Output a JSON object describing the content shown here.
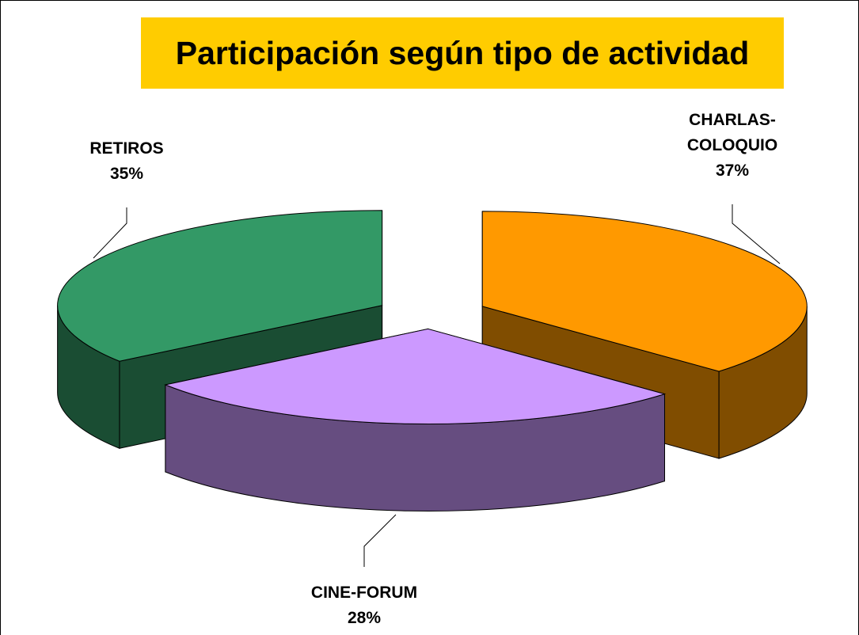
{
  "chart_data": {
    "type": "pie3d",
    "title": "Participación según tipo de actividad",
    "categories": [
      "CHARLAS-COLOQUIO",
      "CINE-FORUM",
      "RETIROS"
    ],
    "values": [
      37,
      28,
      35
    ],
    "value_labels": [
      "37%",
      "28%",
      "35%"
    ],
    "colors": [
      "#FF9900",
      "#CC99FF",
      "#339966"
    ]
  }
}
